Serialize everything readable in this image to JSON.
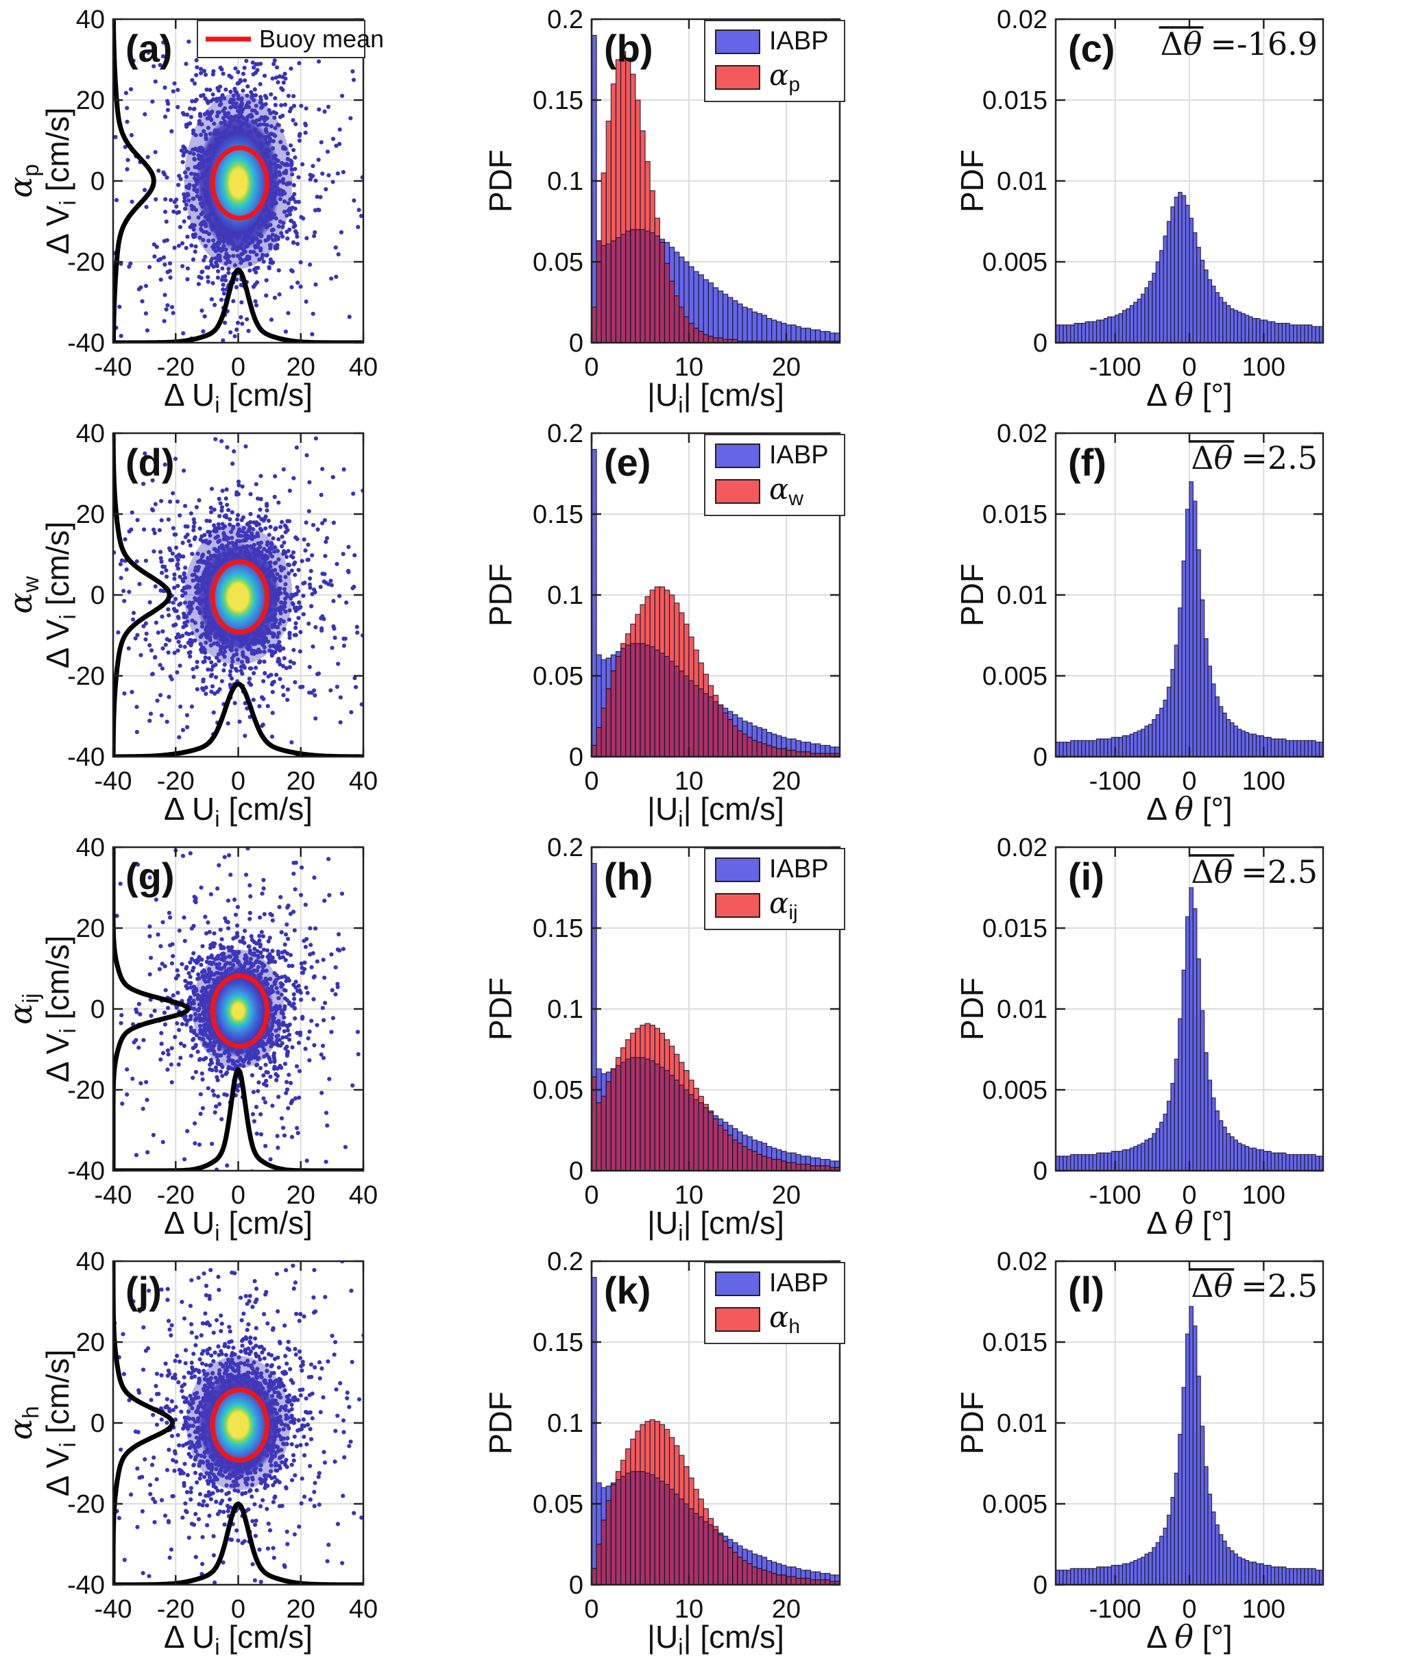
{
  "colors": {
    "iabp_blue": "#6565e8",
    "alpha_red": "#f4595b",
    "overlap_maroon": "#a83266",
    "dot_indigo": "#3833bb",
    "halo_violet": "#4a3eb8",
    "buoy_red": "#f51414",
    "curve_black": "#000000",
    "grid": "#dcdcdc",
    "axis": "#222222",
    "bar_edge": "#14142a",
    "blob_yellow": "#f2e44c",
    "blob_green": "#86d65a",
    "blob_cyan": "#2fc8c8",
    "blob_midblue": "#3b8fe0",
    "blob_blue": "#3f55d0",
    "blob_indigo": "#4038b8"
  },
  "chart_data": {
    "type": "figure-grid-4x3",
    "columns": {
      "scatter": {
        "type": "scatter-density",
        "xlabel": [
          {
            "t": "Δ U"
          },
          {
            "t": "i",
            "s": true
          },
          {
            "t": " [cm/s]"
          }
        ],
        "ylabel": [
          {
            "t": "Δ V"
          },
          {
            "t": "i",
            "s": true
          },
          {
            "t": " [cm/s]"
          }
        ],
        "xlim": [
          -40,
          40
        ],
        "ylim": [
          -40,
          40
        ],
        "xticks": [
          {
            "v": -40,
            "l": "-40"
          },
          {
            "v": -20,
            "l": "-20"
          },
          {
            "v": 0,
            "l": "0"
          },
          {
            "v": 20,
            "l": "20"
          },
          {
            "v": 40,
            "l": "40"
          }
        ],
        "yticks": [
          {
            "v": -40,
            "l": "-40"
          },
          {
            "v": -20,
            "l": "-20"
          },
          {
            "v": 0,
            "l": "0"
          },
          {
            "v": 20,
            "l": "20"
          },
          {
            "v": 40,
            "l": "40"
          }
        ],
        "grid": [
          -20,
          0,
          20
        ],
        "legend_label": "Buoy mean"
      },
      "speed_hist": {
        "type": "bar-overlay",
        "ylabel": [
          {
            "t": "PDF"
          }
        ],
        "xlabel": [
          {
            "t": "|U"
          },
          {
            "t": "i",
            "s": true
          },
          {
            "t": "| [cm/s]"
          }
        ],
        "xlim": [
          0,
          25.5
        ],
        "ylim": [
          0,
          0.2
        ],
        "xticks": [
          {
            "v": 0,
            "l": "0"
          },
          {
            "v": 10,
            "l": "10"
          },
          {
            "v": 20,
            "l": "20"
          }
        ],
        "yticks": [
          {
            "v": 0,
            "l": "0"
          },
          {
            "v": 0.05,
            "l": "0.05"
          },
          {
            "v": 0.1,
            "l": "0.1"
          },
          {
            "v": 0.15,
            "l": "0.15"
          },
          {
            "v": 0.2,
            "l": "0.2"
          }
        ],
        "gridx": [
          10,
          20
        ],
        "gridy": [
          0.05,
          0.1,
          0.15
        ],
        "bin_width": 0.5,
        "legend_blue": "IABP",
        "iabp_values": [
          0.19,
          0.063,
          0.06,
          0.061,
          0.063,
          0.065,
          0.067,
          0.069,
          0.07,
          0.07,
          0.07,
          0.069,
          0.068,
          0.066,
          0.064,
          0.062,
          0.059,
          0.056,
          0.053,
          0.05,
          0.047,
          0.044,
          0.042,
          0.039,
          0.037,
          0.034,
          0.032,
          0.03,
          0.028,
          0.026,
          0.024,
          0.022,
          0.021,
          0.019,
          0.018,
          0.017,
          0.015,
          0.014,
          0.013,
          0.012,
          0.011,
          0.011,
          0.01,
          0.009,
          0.009,
          0.008,
          0.008,
          0.007,
          0.007,
          0.006,
          0.006
        ]
      },
      "angle_hist": {
        "type": "bar",
        "ylabel": [
          {
            "t": "PDF"
          }
        ],
        "xlabel": [
          {
            "t": "Δ "
          },
          {
            "t": "θ",
            "i": true
          },
          {
            "t": " [°]"
          }
        ],
        "xlim": [
          -180,
          180
        ],
        "ylim": [
          0,
          0.02
        ],
        "xticks": [
          {
            "v": -100,
            "l": "-100"
          },
          {
            "v": 0,
            "l": "0"
          },
          {
            "v": 100,
            "l": "100"
          }
        ],
        "yticks": [
          {
            "v": 0,
            "l": "0"
          },
          {
            "v": 0.005,
            "l": "0.005"
          },
          {
            "v": 0.01,
            "l": "0.01"
          },
          {
            "v": 0.015,
            "l": "0.015"
          },
          {
            "v": 0.02,
            "l": "0.02"
          }
        ],
        "gridx": [
          -100,
          0,
          100
        ],
        "gridy": [
          0.005,
          0.01,
          0.015
        ],
        "bin_width": 5,
        "annotation_prefix": [
          {
            "t": "Δ",
            "f": "serif"
          },
          {
            "t": "θ",
            "i": true
          }
        ]
      }
    },
    "rows": [
      {
        "label": [
          {
            "t": "α",
            "i": true
          },
          {
            "t": "p",
            "s": true
          }
        ],
        "scatter": {
          "panel": "(a)",
          "legend": true,
          "seed": 11,
          "sigma_x": 7,
          "sigma_y": 10,
          "blob_rx": 13.5,
          "blob_ry": 17,
          "hot": 0.2,
          "circle": {
            "cx": 0.5,
            "cy": -0.5,
            "r": 8.7
          },
          "marg_bottom": {
            "h": 18,
            "s": 3
          },
          "marg_left": {
            "h": 13,
            "s": 5.5
          }
        },
        "speed": {
          "panel": "(b)",
          "alpha_label": [
            {
              "t": "α",
              "i": true
            },
            {
              "t": "p",
              "s": true
            }
          ],
          "values": [
            0.022,
            0.063,
            0.105,
            0.137,
            0.16,
            0.175,
            0.18,
            0.176,
            0.166,
            0.15,
            0.131,
            0.112,
            0.094,
            0.077,
            0.062,
            0.049,
            0.038,
            0.029,
            0.022,
            0.016,
            0.012,
            0.009,
            0.007,
            0.005,
            0.004,
            0.003,
            0.003,
            0.002,
            0.002,
            0.002,
            0.001,
            0.001,
            0.001,
            0.001,
            0.001,
            0.001,
            0.001,
            0.001,
            0.001,
            0.001,
            0.001,
            0.001,
            0.001,
            0.001,
            0.001,
            0.001,
            0.001,
            0.001,
            0.001,
            0.001,
            0.001
          ]
        },
        "angle": {
          "panel": "(c)",
          "mean": "=-16.9",
          "values": [
            0.0011,
            0.0011,
            0.0011,
            0.0011,
            0.0011,
            0.0012,
            0.0012,
            0.0012,
            0.0013,
            0.0013,
            0.0013,
            0.0014,
            0.0014,
            0.0015,
            0.0016,
            0.0016,
            0.0017,
            0.0018,
            0.002,
            0.0021,
            0.0023,
            0.0025,
            0.0027,
            0.003,
            0.0034,
            0.0038,
            0.0043,
            0.005,
            0.0057,
            0.0066,
            0.0075,
            0.0084,
            0.009,
            0.0093,
            0.0091,
            0.0085,
            0.0077,
            0.0068,
            0.0059,
            0.0051,
            0.0045,
            0.0039,
            0.0035,
            0.0031,
            0.0028,
            0.0025,
            0.0023,
            0.0021,
            0.002,
            0.0019,
            0.0018,
            0.0017,
            0.0016,
            0.0015,
            0.0015,
            0.0014,
            0.0014,
            0.0013,
            0.0013,
            0.0012,
            0.0012,
            0.0012,
            0.0012,
            0.0011,
            0.0011,
            0.0011,
            0.0011,
            0.0011,
            0.0011,
            0.001,
            0.001,
            0.001
          ]
        }
      },
      {
        "label": [
          {
            "t": "α",
            "i": true
          },
          {
            "t": "w",
            "s": true
          }
        ],
        "scatter": {
          "panel": "(d)",
          "legend": false,
          "seed": 22,
          "sigma_x": 8,
          "sigma_y": 8,
          "blob_rx": 13.5,
          "blob_ry": 13.5,
          "hot": 0.24,
          "circle": {
            "cx": 0.5,
            "cy": -0.5,
            "r": 8.7
          },
          "marg_bottom": {
            "h": 18,
            "s": 4
          },
          "marg_left": {
            "h": 18,
            "s": 4.5
          }
        },
        "speed": {
          "panel": "(e)",
          "alpha_label": [
            {
              "t": "α",
              "i": true
            },
            {
              "t": "w",
              "s": true
            }
          ],
          "values": [
            0.007,
            0.018,
            0.03,
            0.042,
            0.053,
            0.062,
            0.07,
            0.076,
            0.082,
            0.088,
            0.094,
            0.099,
            0.103,
            0.105,
            0.105,
            0.103,
            0.1,
            0.095,
            0.089,
            0.082,
            0.074,
            0.066,
            0.058,
            0.051,
            0.044,
            0.038,
            0.032,
            0.027,
            0.023,
            0.019,
            0.016,
            0.014,
            0.012,
            0.01,
            0.009,
            0.008,
            0.007,
            0.006,
            0.005,
            0.005,
            0.004,
            0.004,
            0.003,
            0.003,
            0.003,
            0.002,
            0.002,
            0.002,
            0.002,
            0.002,
            0.002
          ]
        },
        "angle": {
          "panel": "(f)",
          "mean": "=2.5",
          "values": [
            0.0009,
            0.0009,
            0.0009,
            0.0009,
            0.001,
            0.001,
            0.001,
            0.001,
            0.001,
            0.001,
            0.001,
            0.0011,
            0.0011,
            0.0011,
            0.0011,
            0.0012,
            0.0012,
            0.0012,
            0.0013,
            0.0013,
            0.0014,
            0.0015,
            0.0016,
            0.0017,
            0.0019,
            0.002,
            0.0023,
            0.0026,
            0.003,
            0.0035,
            0.0043,
            0.0054,
            0.0069,
            0.0092,
            0.0121,
            0.0153,
            0.017,
            0.0158,
            0.0128,
            0.0097,
            0.0073,
            0.0056,
            0.0045,
            0.0037,
            0.0031,
            0.0027,
            0.0023,
            0.0021,
            0.0019,
            0.0017,
            0.0016,
            0.0015,
            0.0014,
            0.0014,
            0.0013,
            0.0013,
            0.0012,
            0.0012,
            0.0011,
            0.0011,
            0.0011,
            0.0011,
            0.001,
            0.001,
            0.001,
            0.001,
            0.001,
            0.001,
            0.001,
            0.001,
            0.0009,
            0.0009
          ]
        }
      },
      {
        "label": [
          {
            "t": "α",
            "i": true
          },
          {
            "t": "ij",
            "s": true
          }
        ],
        "scatter": {
          "panel": "(g)",
          "legend": false,
          "seed": 33,
          "sigma_x": 6.5,
          "sigma_y": 6.5,
          "blob_rx": 11.5,
          "blob_ry": 11.5,
          "hot": 0.16,
          "circle": {
            "cx": 0.5,
            "cy": -0.5,
            "r": 8.7
          },
          "marg_bottom": {
            "h": 25,
            "s": 2.2
          },
          "marg_left": {
            "h": 24,
            "s": 2.4
          }
        },
        "speed": {
          "panel": "(h)",
          "alpha_label": [
            {
              "t": "α",
              "i": true
            },
            {
              "t": "ij",
              "s": true
            }
          ],
          "values": [
            0.058,
            0.042,
            0.046,
            0.055,
            0.063,
            0.07,
            0.076,
            0.081,
            0.085,
            0.088,
            0.09,
            0.091,
            0.09,
            0.088,
            0.085,
            0.081,
            0.077,
            0.072,
            0.067,
            0.062,
            0.056,
            0.051,
            0.046,
            0.041,
            0.036,
            0.032,
            0.028,
            0.025,
            0.022,
            0.019,
            0.017,
            0.015,
            0.013,
            0.012,
            0.01,
            0.009,
            0.008,
            0.007,
            0.007,
            0.006,
            0.005,
            0.005,
            0.004,
            0.004,
            0.004,
            0.003,
            0.003,
            0.003,
            0.003,
            0.002,
            0.002
          ]
        },
        "angle": {
          "panel": "(i)",
          "mean": "=2.5",
          "values": [
            0.0009,
            0.0009,
            0.0009,
            0.0009,
            0.001,
            0.001,
            0.001,
            0.001,
            0.001,
            0.001,
            0.001,
            0.0011,
            0.0011,
            0.0011,
            0.0011,
            0.0012,
            0.0012,
            0.0012,
            0.0013,
            0.0013,
            0.0014,
            0.0015,
            0.0016,
            0.0017,
            0.0019,
            0.002,
            0.0023,
            0.0026,
            0.003,
            0.0035,
            0.0043,
            0.0054,
            0.0069,
            0.0094,
            0.0124,
            0.0157,
            0.0175,
            0.0162,
            0.0131,
            0.0099,
            0.0073,
            0.0056,
            0.0045,
            0.0037,
            0.0031,
            0.0027,
            0.0023,
            0.0021,
            0.0019,
            0.0017,
            0.0016,
            0.0015,
            0.0014,
            0.0014,
            0.0013,
            0.0013,
            0.0012,
            0.0012,
            0.0011,
            0.0011,
            0.0011,
            0.0011,
            0.001,
            0.001,
            0.001,
            0.001,
            0.001,
            0.001,
            0.001,
            0.001,
            0.0009,
            0.0009
          ]
        }
      },
      {
        "label": [
          {
            "t": "α",
            "i": true
          },
          {
            "t": "h",
            "s": true
          }
        ],
        "scatter": {
          "panel": "(j)",
          "legend": false,
          "seed": 44,
          "sigma_x": 7.5,
          "sigma_y": 7.5,
          "blob_rx": 13,
          "blob_ry": 13,
          "hot": 0.24,
          "circle": {
            "cx": 0.5,
            "cy": -0.5,
            "r": 8.7
          },
          "marg_bottom": {
            "h": 20,
            "s": 3.2
          },
          "marg_left": {
            "h": 19,
            "s": 3.5
          }
        },
        "speed": {
          "panel": "(k)",
          "alpha_label": [
            {
              "t": "α",
              "i": true
            },
            {
              "t": "h",
              "s": true
            }
          ],
          "values": [
            0.01,
            0.025,
            0.04,
            0.052,
            0.062,
            0.07,
            0.077,
            0.084,
            0.09,
            0.095,
            0.099,
            0.101,
            0.102,
            0.101,
            0.099,
            0.096,
            0.091,
            0.086,
            0.08,
            0.073,
            0.066,
            0.059,
            0.053,
            0.047,
            0.041,
            0.036,
            0.031,
            0.027,
            0.023,
            0.02,
            0.017,
            0.015,
            0.013,
            0.011,
            0.01,
            0.009,
            0.008,
            0.007,
            0.006,
            0.006,
            0.005,
            0.005,
            0.004,
            0.004,
            0.004,
            0.003,
            0.003,
            0.003,
            0.003,
            0.002,
            0.002
          ]
        },
        "angle": {
          "panel": "(l)",
          "mean": "=2.5",
          "values": [
            0.0009,
            0.0009,
            0.0009,
            0.0009,
            0.001,
            0.001,
            0.001,
            0.001,
            0.001,
            0.001,
            0.001,
            0.0011,
            0.0011,
            0.0011,
            0.0011,
            0.0012,
            0.0012,
            0.0012,
            0.0013,
            0.0013,
            0.0014,
            0.0015,
            0.0016,
            0.0017,
            0.0019,
            0.002,
            0.0023,
            0.0026,
            0.003,
            0.0035,
            0.0043,
            0.0054,
            0.0069,
            0.0093,
            0.0122,
            0.0155,
            0.0172,
            0.016,
            0.0129,
            0.0098,
            0.0073,
            0.0056,
            0.0045,
            0.0037,
            0.0031,
            0.0027,
            0.0023,
            0.0021,
            0.0019,
            0.0017,
            0.0016,
            0.0015,
            0.0014,
            0.0014,
            0.0013,
            0.0013,
            0.0012,
            0.0012,
            0.0011,
            0.0011,
            0.0011,
            0.0011,
            0.001,
            0.001,
            0.001,
            0.001,
            0.001,
            0.001,
            0.001,
            0.001,
            0.0009,
            0.0009
          ]
        }
      }
    ]
  }
}
